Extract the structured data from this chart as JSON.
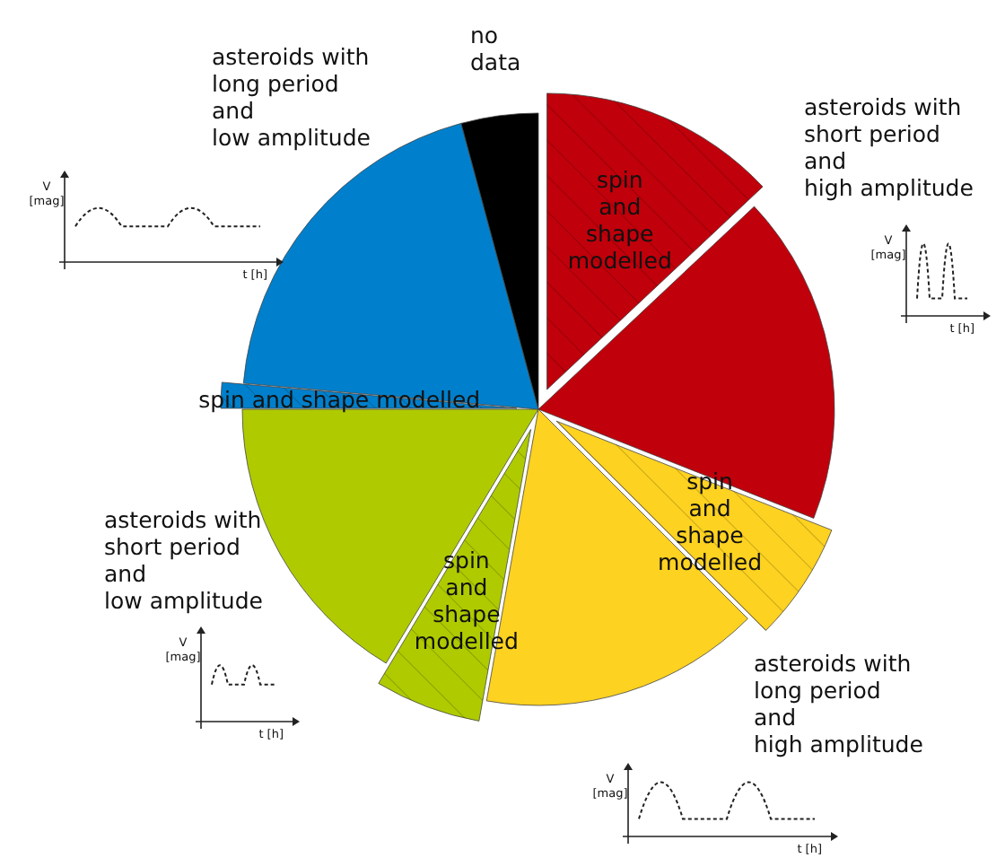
{
  "chart_data": {
    "type": "pie",
    "categories": [
      "spin\nand\nshape\nmodelled",
      "asteroids with\nshort period\nand\nhigh amplitude",
      "spin\nand\nshape\nmodelled",
      "asteroids with\nlong period\nand\nhigh amplitude",
      "spin\nand\nshape\nmodelled",
      "asteroids with\nshort period\nand\nlow amplitude",
      "spin and shape modelled",
      "asteroids with\nlong period\nand\nlow amplitude",
      "no\ndata"
    ],
    "values": [
      13,
      18,
      6.5,
      15.3,
      5.8,
      16.4,
      1.4,
      19.4,
      4.2
    ],
    "colors": [
      "#c0000b",
      "#c0000b",
      "#fdd220",
      "#fdd220",
      "#afcb00",
      "#afcb00",
      "#0080cc",
      "#0080cc",
      "#000000"
    ],
    "annotations": [
      "V\n[mag]",
      "t [h]",
      "V\n[mag]",
      "t [h]",
      "V\n[mag]",
      "t [h]",
      "V\n[mag]",
      "t [h]"
    ]
  }
}
